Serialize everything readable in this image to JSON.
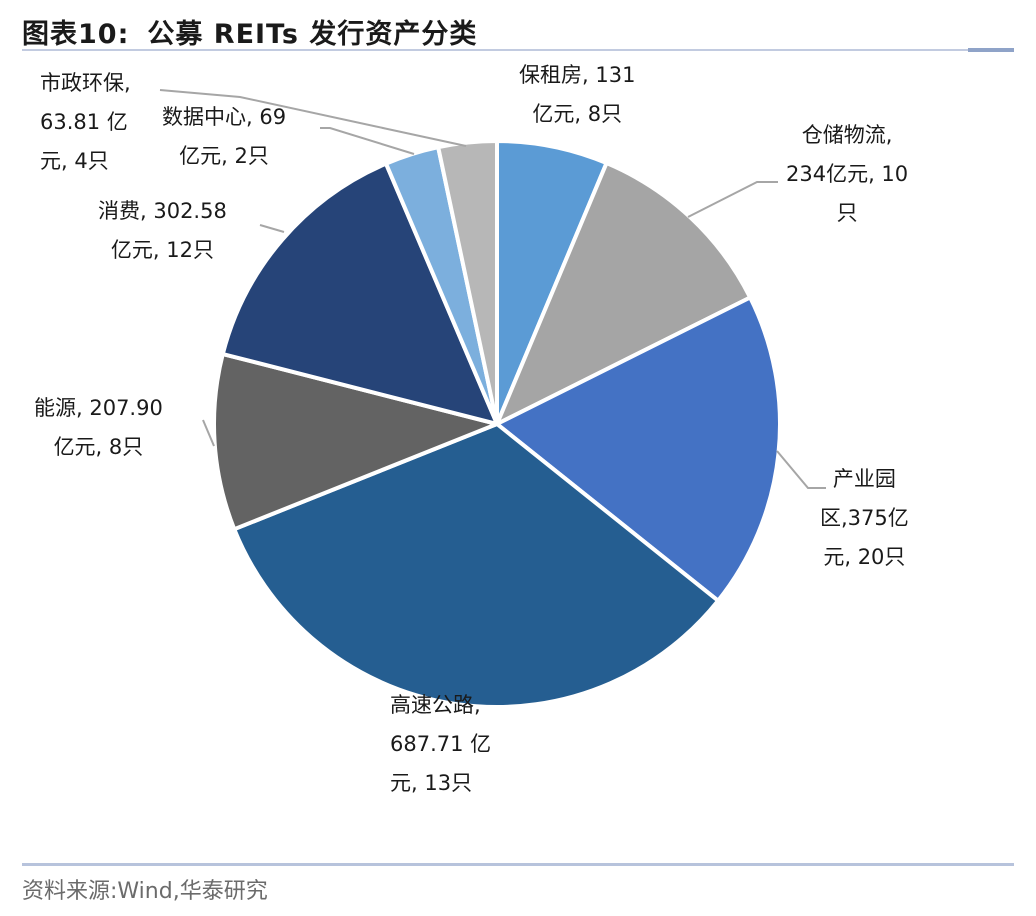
{
  "header": {
    "prefix": "图表10:",
    "title": "公募 REITs 发行资产分类"
  },
  "source": "资料来源:Wind,华泰研究",
  "chart_data": {
    "type": "pie",
    "title": "公募 REITs 发行资产分类",
    "unit": "亿元",
    "series": [
      {
        "name": "保租房",
        "value": 131,
        "count": 8,
        "color": "#5b9bd5",
        "label_lines": [
          "保租房, 131",
          "亿元, 8只"
        ]
      },
      {
        "name": "仓储物流",
        "value": 234,
        "count": 10,
        "color": "#a5a5a5",
        "label_lines": [
          "仓储物流,",
          "234亿元, 10",
          "只"
        ]
      },
      {
        "name": "产业园区",
        "value": 375,
        "count": 20,
        "color": "#4472c4",
        "label_lines": [
          "产业园",
          "区,375亿",
          "元, 20只"
        ]
      },
      {
        "name": "高速公路",
        "value": 687.71,
        "count": 13,
        "color": "#255e91",
        "label_lines": [
          "高速公路,",
          "687.71 亿",
          "元, 13只"
        ]
      },
      {
        "name": "能源",
        "value": 207.9,
        "count": 8,
        "color": "#636363",
        "label_lines": [
          "能源, 207.90",
          "亿元, 8只"
        ]
      },
      {
        "name": "消费",
        "value": 302.58,
        "count": 12,
        "color": "#264478",
        "label_lines": [
          "消费, 302.58",
          "亿元, 12只"
        ]
      },
      {
        "name": "市政环保",
        "value": 63.81,
        "count": 4,
        "color": "#7cafdd",
        "label_lines": [
          "市政环保,",
          "63.81 亿",
          "元, 4只"
        ]
      },
      {
        "name": "数据中心",
        "value": 69,
        "count": 2,
        "color": "#b7b7b7",
        "label_lines": [
          "数据中心, 69",
          "亿元, 2只"
        ]
      }
    ]
  }
}
